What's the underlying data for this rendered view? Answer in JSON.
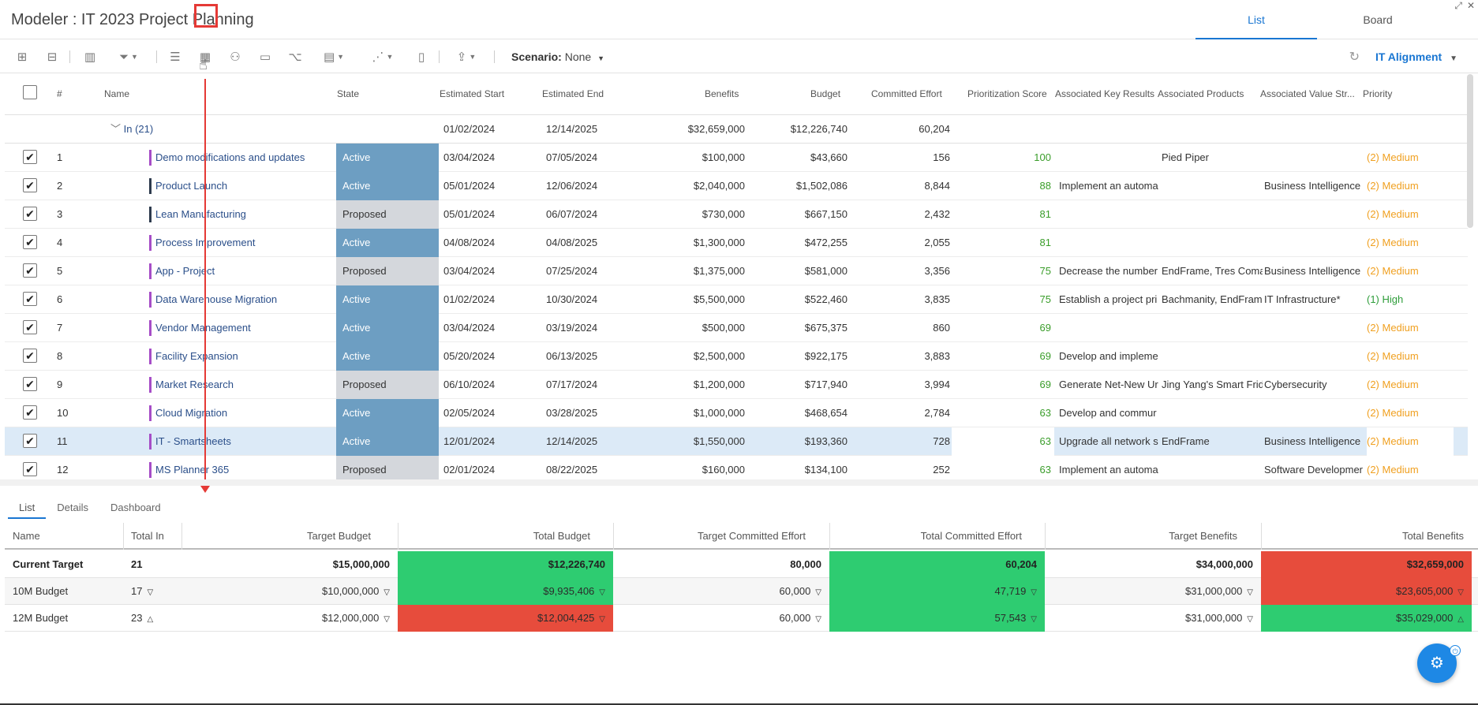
{
  "header": {
    "title": "Modeler : IT 2023 Project Planning",
    "tabs": [
      {
        "label": "List",
        "active": true
      },
      {
        "label": "Board",
        "active": false
      }
    ]
  },
  "toolbar": {
    "scenario_label": "Scenario:",
    "scenario_value": "None",
    "alignment_label": "IT Alignment"
  },
  "grid": {
    "columns": [
      "#",
      "Name",
      "State",
      "Estimated Start",
      "Estimated End",
      "Benefits",
      "Budget",
      "Committed Effort",
      "Prioritization Score",
      "Associated Key Results",
      "Associated Products",
      "Associated Value Str...",
      "Priority"
    ],
    "group": {
      "label": "In (21)",
      "start": "01/02/2024",
      "end": "12/14/2025",
      "benefits": "$32,659,000",
      "budget": "$12,226,740",
      "effort": "60,204"
    },
    "rows": [
      {
        "num": "1",
        "name": "Demo modifications and updates",
        "state": "Active",
        "start": "03/04/2024",
        "end": "07/05/2024",
        "benefits": "$100,000",
        "budget": "$43,660",
        "effort": "156",
        "score": "100",
        "key_results": "",
        "products": "Pied Piper",
        "value_stream": "",
        "priority": "(2) Medium"
      },
      {
        "num": "2",
        "name": "Product Launch",
        "state": "Active",
        "start": "05/01/2024",
        "end": "12/06/2024",
        "benefits": "$2,040,000",
        "budget": "$1,502,086",
        "effort": "8,844",
        "score": "88",
        "key_results": "Implement an automa",
        "products": "",
        "value_stream": "Business Intelligence",
        "priority": "(2) Medium"
      },
      {
        "num": "3",
        "name": "Lean Manufacturing",
        "state": "Proposed",
        "start": "05/01/2024",
        "end": "06/07/2024",
        "benefits": "$730,000",
        "budget": "$667,150",
        "effort": "2,432",
        "score": "81",
        "key_results": "",
        "products": "",
        "value_stream": "",
        "priority": "(2) Medium"
      },
      {
        "num": "4",
        "name": "Process Improvement",
        "state": "Active",
        "start": "04/08/2024",
        "end": "04/08/2025",
        "benefits": "$1,300,000",
        "budget": "$472,255",
        "effort": "2,055",
        "score": "81",
        "key_results": "",
        "products": "",
        "value_stream": "",
        "priority": "(2) Medium"
      },
      {
        "num": "5",
        "name": "App - Project",
        "state": "Proposed",
        "start": "03/04/2024",
        "end": "07/25/2024",
        "benefits": "$1,375,000",
        "budget": "$581,000",
        "effort": "3,356",
        "score": "75",
        "key_results": "Decrease the number",
        "products": "EndFrame, Tres Coma",
        "value_stream": "Business Intelligence",
        "priority": "(2) Medium"
      },
      {
        "num": "6",
        "name": "Data Warehouse Migration",
        "state": "Active",
        "start": "01/02/2024",
        "end": "10/30/2024",
        "benefits": "$5,500,000",
        "budget": "$522,460",
        "effort": "3,835",
        "score": "75",
        "key_results": "Establish a project pri",
        "products": "Bachmanity, EndFram",
        "value_stream": "IT Infrastructure*",
        "priority": "(1) High"
      },
      {
        "num": "7",
        "name": "Vendor Management",
        "state": "Active",
        "start": "03/04/2024",
        "end": "03/19/2024",
        "benefits": "$500,000",
        "budget": "$675,375",
        "effort": "860",
        "score": "69",
        "key_results": "",
        "products": "",
        "value_stream": "",
        "priority": "(2) Medium"
      },
      {
        "num": "8",
        "name": "Facility Expansion",
        "state": "Active",
        "start": "05/20/2024",
        "end": "06/13/2025",
        "benefits": "$2,500,000",
        "budget": "$922,175",
        "effort": "3,883",
        "score": "69",
        "key_results": "Develop and impleme",
        "products": "",
        "value_stream": "",
        "priority": "(2) Medium"
      },
      {
        "num": "9",
        "name": "Market Research",
        "state": "Proposed",
        "start": "06/10/2024",
        "end": "07/17/2024",
        "benefits": "$1,200,000",
        "budget": "$717,940",
        "effort": "3,994",
        "score": "69",
        "key_results": "Generate Net-New Ur",
        "products": "Jing Yang's Smart Frid",
        "value_stream": "Cybersecurity",
        "priority": "(2) Medium"
      },
      {
        "num": "10",
        "name": "Cloud Migration",
        "state": "Active",
        "start": "02/05/2024",
        "end": "03/28/2025",
        "benefits": "$1,000,000",
        "budget": "$468,654",
        "effort": "2,784",
        "score": "63",
        "key_results": "Develop and commur",
        "products": "",
        "value_stream": "",
        "priority": "(2) Medium"
      },
      {
        "num": "11",
        "name": "IT - Smartsheets",
        "state": "Active",
        "start": "12/01/2024",
        "end": "12/14/2025",
        "benefits": "$1,550,000",
        "budget": "$193,360",
        "effort": "728",
        "score": "63",
        "key_results": "Upgrade all network s",
        "products": "EndFrame",
        "value_stream": "Business Intelligence",
        "priority": "(2) Medium"
      },
      {
        "num": "12",
        "name": "MS Planner 365",
        "state": "Proposed",
        "start": "02/01/2024",
        "end": "08/22/2025",
        "benefits": "$160,000",
        "budget": "$134,100",
        "effort": "252",
        "score": "63",
        "key_results": "Implement an automa",
        "products": "",
        "value_stream": "Software Developmer",
        "priority": "(2) Medium"
      }
    ]
  },
  "bottom_tabs": [
    "List",
    "Details",
    "Dashboard"
  ],
  "targets": {
    "columns": [
      "Name",
      "Total In",
      "Target Budget",
      "Total Budget",
      "Target Committed Effort",
      "Total Committed Effort",
      "Target Benefits",
      "Total Benefits"
    ],
    "rows": [
      {
        "name": "Current Target",
        "total_in": "21",
        "target_budget": "$15,000,000",
        "total_budget": "$12,226,740",
        "target_effort": "80,000",
        "total_effort": "60,204",
        "target_benefits": "$34,000,000",
        "total_benefits": "$32,659,000"
      },
      {
        "name": "10M Budget",
        "total_in": "17",
        "target_budget": "$10,000,000",
        "total_budget": "$9,935,406",
        "target_effort": "60,000",
        "total_effort": "47,719",
        "target_benefits": "$31,000,000",
        "total_benefits": "$23,605,000"
      },
      {
        "name": "12M Budget",
        "total_in": "23",
        "target_budget": "$12,000,000",
        "total_budget": "$12,004,425",
        "target_effort": "60,000",
        "total_effort": "57,543",
        "target_benefits": "$31,000,000",
        "total_benefits": "$35,029,000"
      }
    ]
  },
  "colors": {
    "accent": "#1976d2",
    "active_state": "#6d9ec2",
    "proposed_state": "#d4d7dc",
    "good": "#2ecc71",
    "bad": "#e74c3c",
    "medium_priority": "#f0a020"
  }
}
